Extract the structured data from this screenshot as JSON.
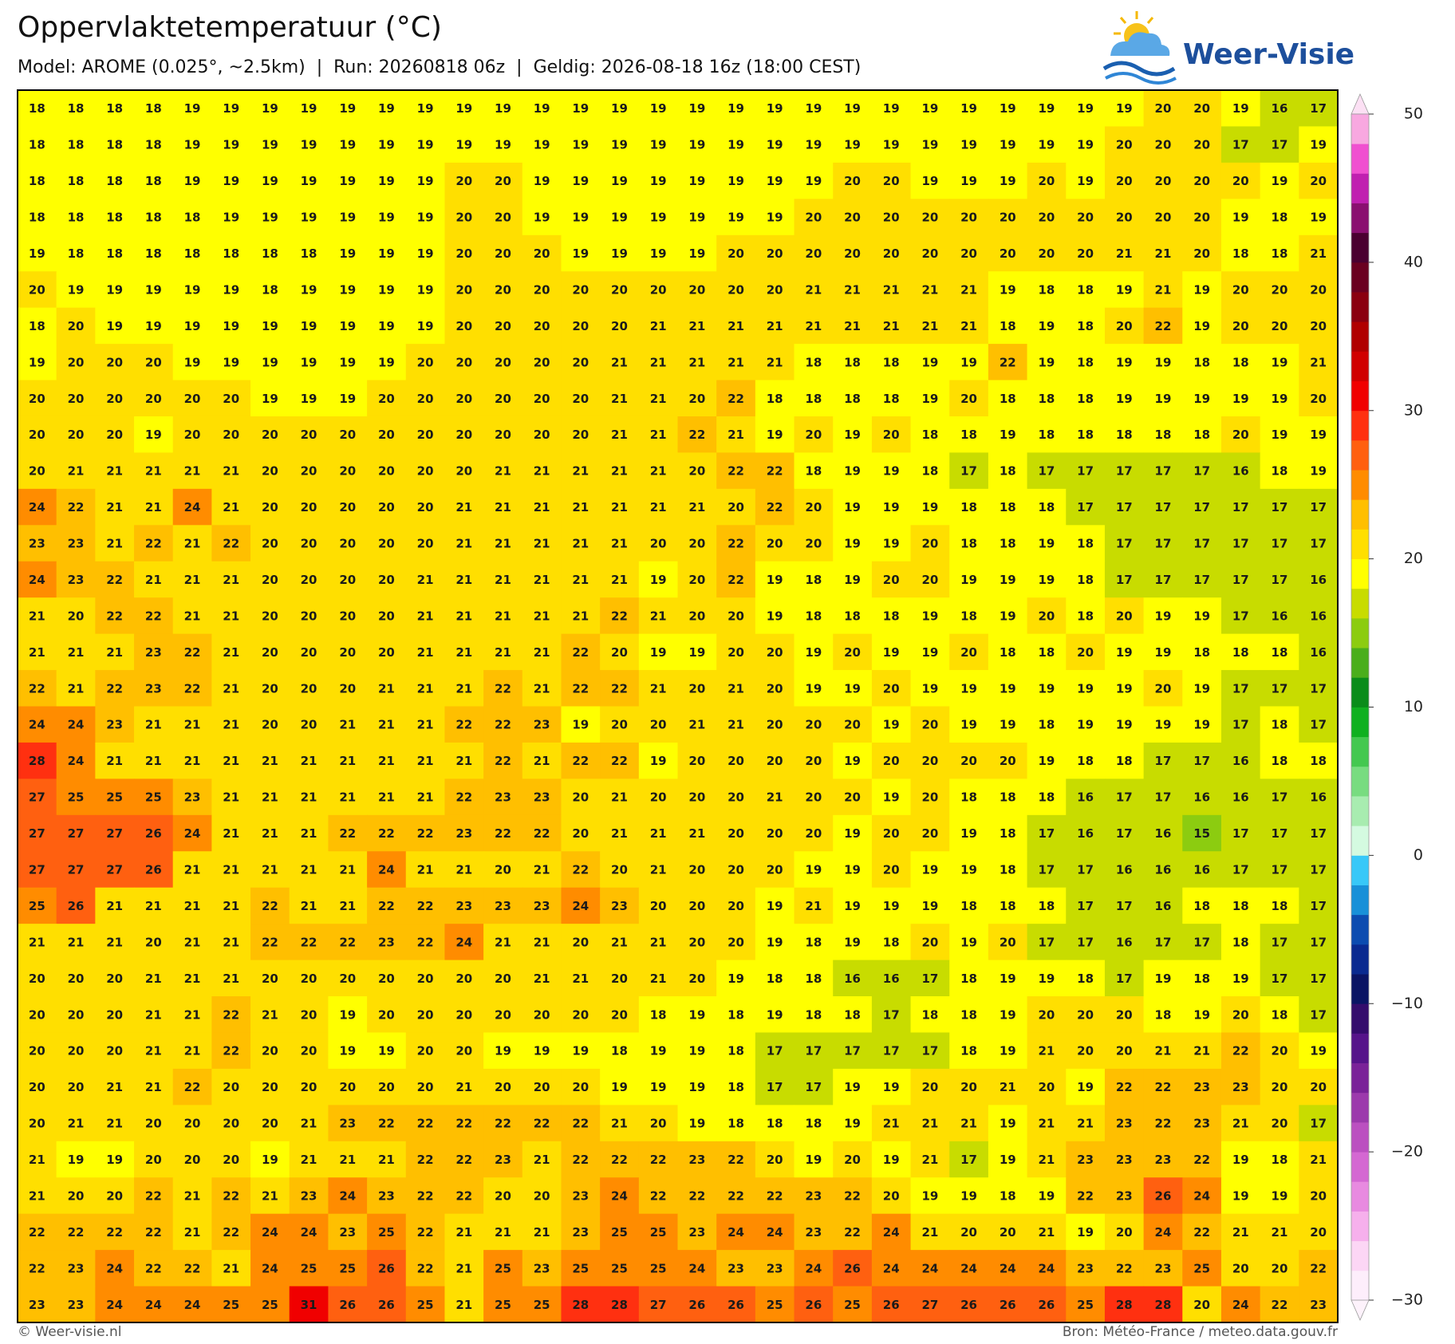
{
  "chart_data": {
    "type": "grid-map",
    "title": "Oppervlaktetemperatuur (°C)",
    "subtitle": "Model: AROME (0.025°, ~2.5km)  |  Run: 20260818 06z  |  Geldig: 2026-08-18 16z (18:00 CEST)",
    "logo": "Weer-Visie",
    "credit": "© Weer-visie.nl",
    "source": "Bron: Météo-France / meteo.data.gouv.fr",
    "values": [
      [
        18,
        18,
        18,
        18,
        19,
        19,
        19,
        19,
        19,
        19,
        19,
        19,
        19,
        19,
        19,
        19,
        19,
        19,
        19,
        19,
        19,
        19,
        19,
        19,
        19,
        19,
        19,
        19,
        19,
        20,
        20,
        19,
        16,
        17
      ],
      [
        18,
        18,
        18,
        18,
        19,
        19,
        19,
        19,
        19,
        19,
        19,
        19,
        19,
        19,
        19,
        19,
        19,
        19,
        19,
        19,
        19,
        19,
        19,
        19,
        19,
        19,
        19,
        19,
        20,
        20,
        20,
        17,
        17,
        19
      ],
      [
        18,
        18,
        18,
        18,
        19,
        19,
        19,
        19,
        19,
        19,
        19,
        20,
        20,
        19,
        19,
        19,
        19,
        19,
        19,
        19,
        19,
        20,
        20,
        19,
        19,
        19,
        20,
        19,
        20,
        20,
        20,
        20,
        19,
        20
      ],
      [
        18,
        18,
        18,
        18,
        18,
        19,
        19,
        19,
        19,
        19,
        19,
        20,
        20,
        19,
        19,
        19,
        19,
        19,
        19,
        19,
        20,
        20,
        20,
        20,
        20,
        20,
        20,
        20,
        20,
        20,
        20,
        19,
        18,
        19
      ],
      [
        19,
        18,
        18,
        18,
        18,
        18,
        18,
        18,
        19,
        19,
        19,
        20,
        20,
        20,
        19,
        19,
        19,
        19,
        20,
        20,
        20,
        20,
        20,
        20,
        20,
        20,
        20,
        20,
        21,
        21,
        20,
        18,
        18,
        21
      ],
      [
        20,
        19,
        19,
        19,
        19,
        19,
        18,
        19,
        19,
        19,
        19,
        20,
        20,
        20,
        20,
        20,
        20,
        20,
        20,
        20,
        21,
        21,
        21,
        21,
        21,
        19,
        18,
        18,
        19,
        21,
        19,
        20,
        20,
        20
      ],
      [
        18,
        20,
        19,
        19,
        19,
        19,
        19,
        19,
        19,
        19,
        19,
        20,
        20,
        20,
        20,
        20,
        21,
        21,
        21,
        21,
        21,
        21,
        21,
        21,
        21,
        18,
        19,
        18,
        20,
        22,
        19,
        20,
        20,
        20
      ],
      [
        19,
        20,
        20,
        20,
        19,
        19,
        19,
        19,
        19,
        19,
        20,
        20,
        20,
        20,
        20,
        21,
        21,
        21,
        21,
        21,
        18,
        18,
        18,
        19,
        19,
        22,
        19,
        18,
        19,
        19,
        18,
        18,
        19,
        21
      ],
      [
        20,
        20,
        20,
        20,
        20,
        20,
        19,
        19,
        19,
        20,
        20,
        20,
        20,
        20,
        20,
        21,
        21,
        20,
        22,
        18,
        18,
        18,
        18,
        19,
        20,
        18,
        18,
        18,
        19,
        19,
        19,
        19,
        19,
        20
      ],
      [
        20,
        20,
        20,
        19,
        20,
        20,
        20,
        20,
        20,
        20,
        20,
        20,
        20,
        20,
        20,
        21,
        21,
        22,
        21,
        19,
        20,
        19,
        20,
        18,
        18,
        19,
        18,
        18,
        18,
        18,
        18,
        20,
        19,
        19
      ],
      [
        20,
        21,
        21,
        21,
        21,
        21,
        20,
        20,
        20,
        20,
        20,
        20,
        21,
        21,
        21,
        21,
        21,
        20,
        22,
        22,
        18,
        19,
        19,
        18,
        17,
        18,
        17,
        17,
        17,
        17,
        17,
        16,
        18,
        19
      ],
      [
        24,
        22,
        21,
        21,
        24,
        21,
        20,
        20,
        20,
        20,
        20,
        21,
        21,
        21,
        21,
        21,
        21,
        21,
        20,
        22,
        20,
        19,
        19,
        19,
        18,
        18,
        18,
        17,
        17,
        17,
        17,
        17,
        17,
        17
      ],
      [
        23,
        23,
        21,
        22,
        21,
        22,
        20,
        20,
        20,
        20,
        20,
        21,
        21,
        21,
        21,
        21,
        20,
        20,
        22,
        20,
        20,
        19,
        19,
        20,
        18,
        18,
        19,
        18,
        17,
        17,
        17,
        17,
        17,
        17
      ],
      [
        24,
        23,
        22,
        21,
        21,
        21,
        20,
        20,
        20,
        20,
        21,
        21,
        21,
        21,
        21,
        21,
        19,
        20,
        22,
        19,
        18,
        19,
        20,
        20,
        19,
        19,
        19,
        18,
        17,
        17,
        17,
        17,
        17,
        16
      ],
      [
        21,
        20,
        22,
        22,
        21,
        21,
        20,
        20,
        20,
        20,
        21,
        21,
        21,
        21,
        21,
        22,
        21,
        20,
        20,
        19,
        18,
        18,
        18,
        19,
        18,
        19,
        20,
        18,
        20,
        19,
        19,
        17,
        16,
        16
      ],
      [
        21,
        21,
        21,
        23,
        22,
        21,
        20,
        20,
        20,
        20,
        21,
        21,
        21,
        21,
        22,
        20,
        19,
        19,
        20,
        20,
        19,
        20,
        19,
        19,
        20,
        18,
        18,
        20,
        19,
        19,
        18,
        18,
        18,
        16
      ],
      [
        22,
        21,
        22,
        23,
        22,
        21,
        20,
        20,
        20,
        21,
        21,
        21,
        22,
        21,
        22,
        22,
        21,
        20,
        21,
        20,
        19,
        19,
        20,
        19,
        19,
        19,
        19,
        19,
        19,
        20,
        19,
        17,
        17,
        17
      ],
      [
        24,
        24,
        23,
        21,
        21,
        21,
        20,
        20,
        21,
        21,
        21,
        22,
        22,
        23,
        19,
        20,
        20,
        21,
        21,
        20,
        20,
        20,
        19,
        20,
        19,
        19,
        18,
        19,
        19,
        19,
        19,
        17,
        18,
        17
      ],
      [
        28,
        24,
        21,
        21,
        21,
        21,
        21,
        21,
        21,
        21,
        21,
        21,
        22,
        21,
        22,
        22,
        19,
        20,
        20,
        20,
        20,
        19,
        20,
        20,
        20,
        20,
        19,
        18,
        18,
        17,
        17,
        16,
        18,
        18
      ],
      [
        27,
        25,
        25,
        25,
        23,
        21,
        21,
        21,
        21,
        21,
        21,
        22,
        23,
        23,
        20,
        21,
        20,
        20,
        20,
        21,
        20,
        20,
        19,
        20,
        18,
        18,
        18,
        16,
        17,
        17,
        16,
        16,
        17,
        16
      ],
      [
        27,
        27,
        27,
        26,
        24,
        21,
        21,
        21,
        22,
        22,
        22,
        23,
        22,
        22,
        20,
        21,
        21,
        21,
        20,
        20,
        20,
        19,
        20,
        20,
        19,
        18,
        17,
        16,
        17,
        16,
        15,
        17,
        17,
        17
      ],
      [
        27,
        27,
        27,
        26,
        21,
        21,
        21,
        21,
        21,
        24,
        21,
        21,
        20,
        21,
        22,
        20,
        21,
        20,
        20,
        20,
        19,
        19,
        20,
        19,
        19,
        18,
        17,
        17,
        16,
        16,
        16,
        17,
        17,
        17
      ],
      [
        25,
        26,
        21,
        21,
        21,
        21,
        22,
        21,
        21,
        22,
        22,
        23,
        23,
        23,
        24,
        23,
        20,
        20,
        20,
        19,
        21,
        19,
        19,
        19,
        18,
        18,
        18,
        17,
        17,
        16,
        18,
        18,
        18,
        17
      ],
      [
        21,
        21,
        21,
        20,
        21,
        21,
        22,
        22,
        22,
        23,
        22,
        24,
        21,
        21,
        20,
        21,
        21,
        20,
        20,
        19,
        18,
        19,
        18,
        20,
        19,
        20,
        17,
        17,
        16,
        17,
        17,
        18,
        17,
        17
      ],
      [
        20,
        20,
        20,
        21,
        21,
        21,
        20,
        20,
        20,
        20,
        20,
        20,
        20,
        21,
        21,
        20,
        21,
        20,
        19,
        18,
        18,
        16,
        16,
        17,
        18,
        19,
        19,
        18,
        17,
        19,
        18,
        19,
        17,
        17
      ],
      [
        20,
        20,
        20,
        21,
        21,
        22,
        21,
        20,
        19,
        20,
        20,
        20,
        20,
        20,
        20,
        20,
        18,
        19,
        18,
        19,
        18,
        18,
        17,
        18,
        18,
        19,
        20,
        20,
        20,
        18,
        19,
        20,
        18,
        17
      ],
      [
        20,
        20,
        20,
        21,
        21,
        22,
        20,
        20,
        19,
        19,
        20,
        20,
        19,
        19,
        19,
        18,
        19,
        19,
        18,
        17,
        17,
        17,
        17,
        17,
        18,
        19,
        21,
        20,
        20,
        21,
        21,
        22,
        20,
        19
      ],
      [
        20,
        20,
        21,
        21,
        22,
        20,
        20,
        20,
        20,
        20,
        20,
        21,
        20,
        20,
        20,
        19,
        19,
        19,
        18,
        17,
        17,
        19,
        19,
        20,
        20,
        21,
        20,
        19,
        22,
        22,
        23,
        23,
        20,
        20
      ],
      [
        20,
        21,
        21,
        20,
        20,
        20,
        20,
        21,
        23,
        22,
        22,
        22,
        22,
        22,
        22,
        21,
        20,
        19,
        18,
        18,
        18,
        19,
        21,
        21,
        21,
        19,
        21,
        21,
        23,
        22,
        23,
        21,
        20,
        17
      ],
      [
        21,
        19,
        19,
        20,
        20,
        20,
        19,
        21,
        21,
        21,
        22,
        22,
        23,
        21,
        22,
        22,
        22,
        23,
        22,
        20,
        19,
        20,
        19,
        21,
        17,
        19,
        21,
        23,
        23,
        23,
        22,
        19,
        18,
        21
      ],
      [
        21,
        20,
        20,
        22,
        21,
        22,
        21,
        23,
        24,
        23,
        22,
        22,
        20,
        20,
        23,
        24,
        22,
        22,
        22,
        22,
        23,
        22,
        20,
        19,
        19,
        18,
        19,
        22,
        23,
        26,
        24,
        19,
        19,
        20
      ],
      [
        22,
        22,
        22,
        22,
        21,
        22,
        24,
        24,
        23,
        25,
        22,
        21,
        21,
        21,
        23,
        25,
        25,
        23,
        24,
        24,
        23,
        22,
        24,
        21,
        20,
        20,
        21,
        19,
        20,
        24,
        22,
        21,
        21,
        20
      ],
      [
        22,
        23,
        24,
        22,
        22,
        21,
        24,
        25,
        25,
        26,
        22,
        21,
        25,
        23,
        25,
        25,
        25,
        24,
        23,
        23,
        24,
        26,
        24,
        24,
        24,
        24,
        24,
        23,
        22,
        23,
        25,
        20,
        20,
        22
      ],
      [
        23,
        23,
        24,
        24,
        24,
        25,
        25,
        31,
        26,
        26,
        25,
        21,
        25,
        25,
        28,
        28,
        27,
        26,
        26,
        25,
        26,
        25,
        26,
        27,
        26,
        26,
        26,
        25,
        28,
        28,
        20,
        24,
        22,
        23
      ]
    ],
    "colorbar": {
      "lim": [
        -30,
        50
      ],
      "ticks": [
        {
          "value": -30,
          "label": "−30"
        },
        {
          "value": -20,
          "label": "−20"
        },
        {
          "value": -10,
          "label": "−10"
        },
        0,
        10,
        20,
        30,
        40,
        50
      ],
      "colors": [
        "#fdeefb",
        "#fcd6f5",
        "#f6b0ec",
        "#e88ae0",
        "#d468d2",
        "#bb50c0",
        "#9c3aac",
        "#7a2298",
        "#56148a",
        "#340c6c",
        "#0a1464",
        "#0a2a90",
        "#0c4cb0",
        "#1890d8",
        "#38c8f8",
        "#d4fae0",
        "#a8ecb0",
        "#78dc80",
        "#44c850",
        "#10b020",
        "#0a8c1a",
        "#4aae1c",
        "#8ccc10",
        "#c8dc00",
        "#ffff00",
        "#ffdf00",
        "#ffbf00",
        "#ff8c00",
        "#ff6010",
        "#ff3010",
        "#f00000",
        "#d00000",
        "#b00000",
        "#8a0010",
        "#6a0020",
        "#4a0030",
        "#8a1070",
        "#c020b0",
        "#f050d0",
        "#f8a8e0"
      ]
    }
  }
}
